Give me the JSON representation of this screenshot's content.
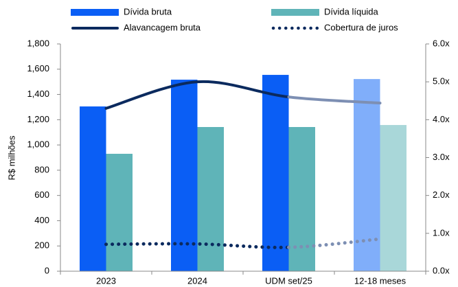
{
  "chart_data": {
    "type": "bar_line",
    "ylabel": "R$ milhões",
    "categories": [
      "2023",
      "2024",
      "UDM set/25",
      "12-18 meses"
    ],
    "ylim": [
      0,
      1800
    ],
    "yticks": [
      {
        "value": 0,
        "label": "0"
      },
      {
        "value": 200,
        "label": "200"
      },
      {
        "value": 400,
        "label": "400"
      },
      {
        "value": 600,
        "label": "600"
      },
      {
        "value": 800,
        "label": "800"
      },
      {
        "value": 1000,
        "label": "1,000"
      },
      {
        "value": 1200,
        "label": "1,200"
      },
      {
        "value": 1400,
        "label": "1,400"
      },
      {
        "value": 1600,
        "label": "1,600"
      },
      {
        "value": 1800,
        "label": "1,800"
      }
    ],
    "y2lim": [
      0,
      6
    ],
    "y2ticks": [
      {
        "value": 0,
        "label": "0.0x"
      },
      {
        "value": 1,
        "label": "1.0x"
      },
      {
        "value": 2,
        "label": "2.0x"
      },
      {
        "value": 3,
        "label": "3.0x"
      },
      {
        "value": 4,
        "label": "4.0x"
      },
      {
        "value": 5,
        "label": "5.0x"
      },
      {
        "value": 6,
        "label": "6.0x"
      }
    ],
    "series": [
      {
        "name": "Dívida bruta",
        "kind": "bar",
        "color": "#0a5ef5",
        "colors": [
          "#0a5ef5",
          "#0a5ef5",
          "#0a5ef5",
          "#80aefa"
        ],
        "values": [
          1305,
          1517,
          1555,
          1522
        ]
      },
      {
        "name": "Dívida líquida",
        "kind": "bar",
        "color": "#5fb4b8",
        "colors": [
          "#5fb4b8",
          "#5fb4b8",
          "#5fb4b8",
          "#a9d7d9"
        ],
        "values": [
          930,
          1142,
          1142,
          1158
        ]
      },
      {
        "name": "Alavancagem bruta",
        "kind": "line",
        "axis": "y2",
        "color": "#0b2a5e",
        "colors": [
          "#0b2a5e",
          "#0b2a5e",
          "#0b2a5e",
          "#7d8fb3"
        ],
        "values": [
          4.3,
          5.0,
          4.6,
          4.44
        ]
      },
      {
        "name": "Cobertura de juros",
        "kind": "dotted",
        "axis": "y2",
        "color": "#0b2a5e",
        "colors": [
          "#0b2a5e",
          "#0b2a5e",
          "#0b2a5e",
          "#7d8fb3"
        ],
        "values": [
          0.71,
          0.72,
          0.63,
          0.85
        ]
      }
    ]
  }
}
